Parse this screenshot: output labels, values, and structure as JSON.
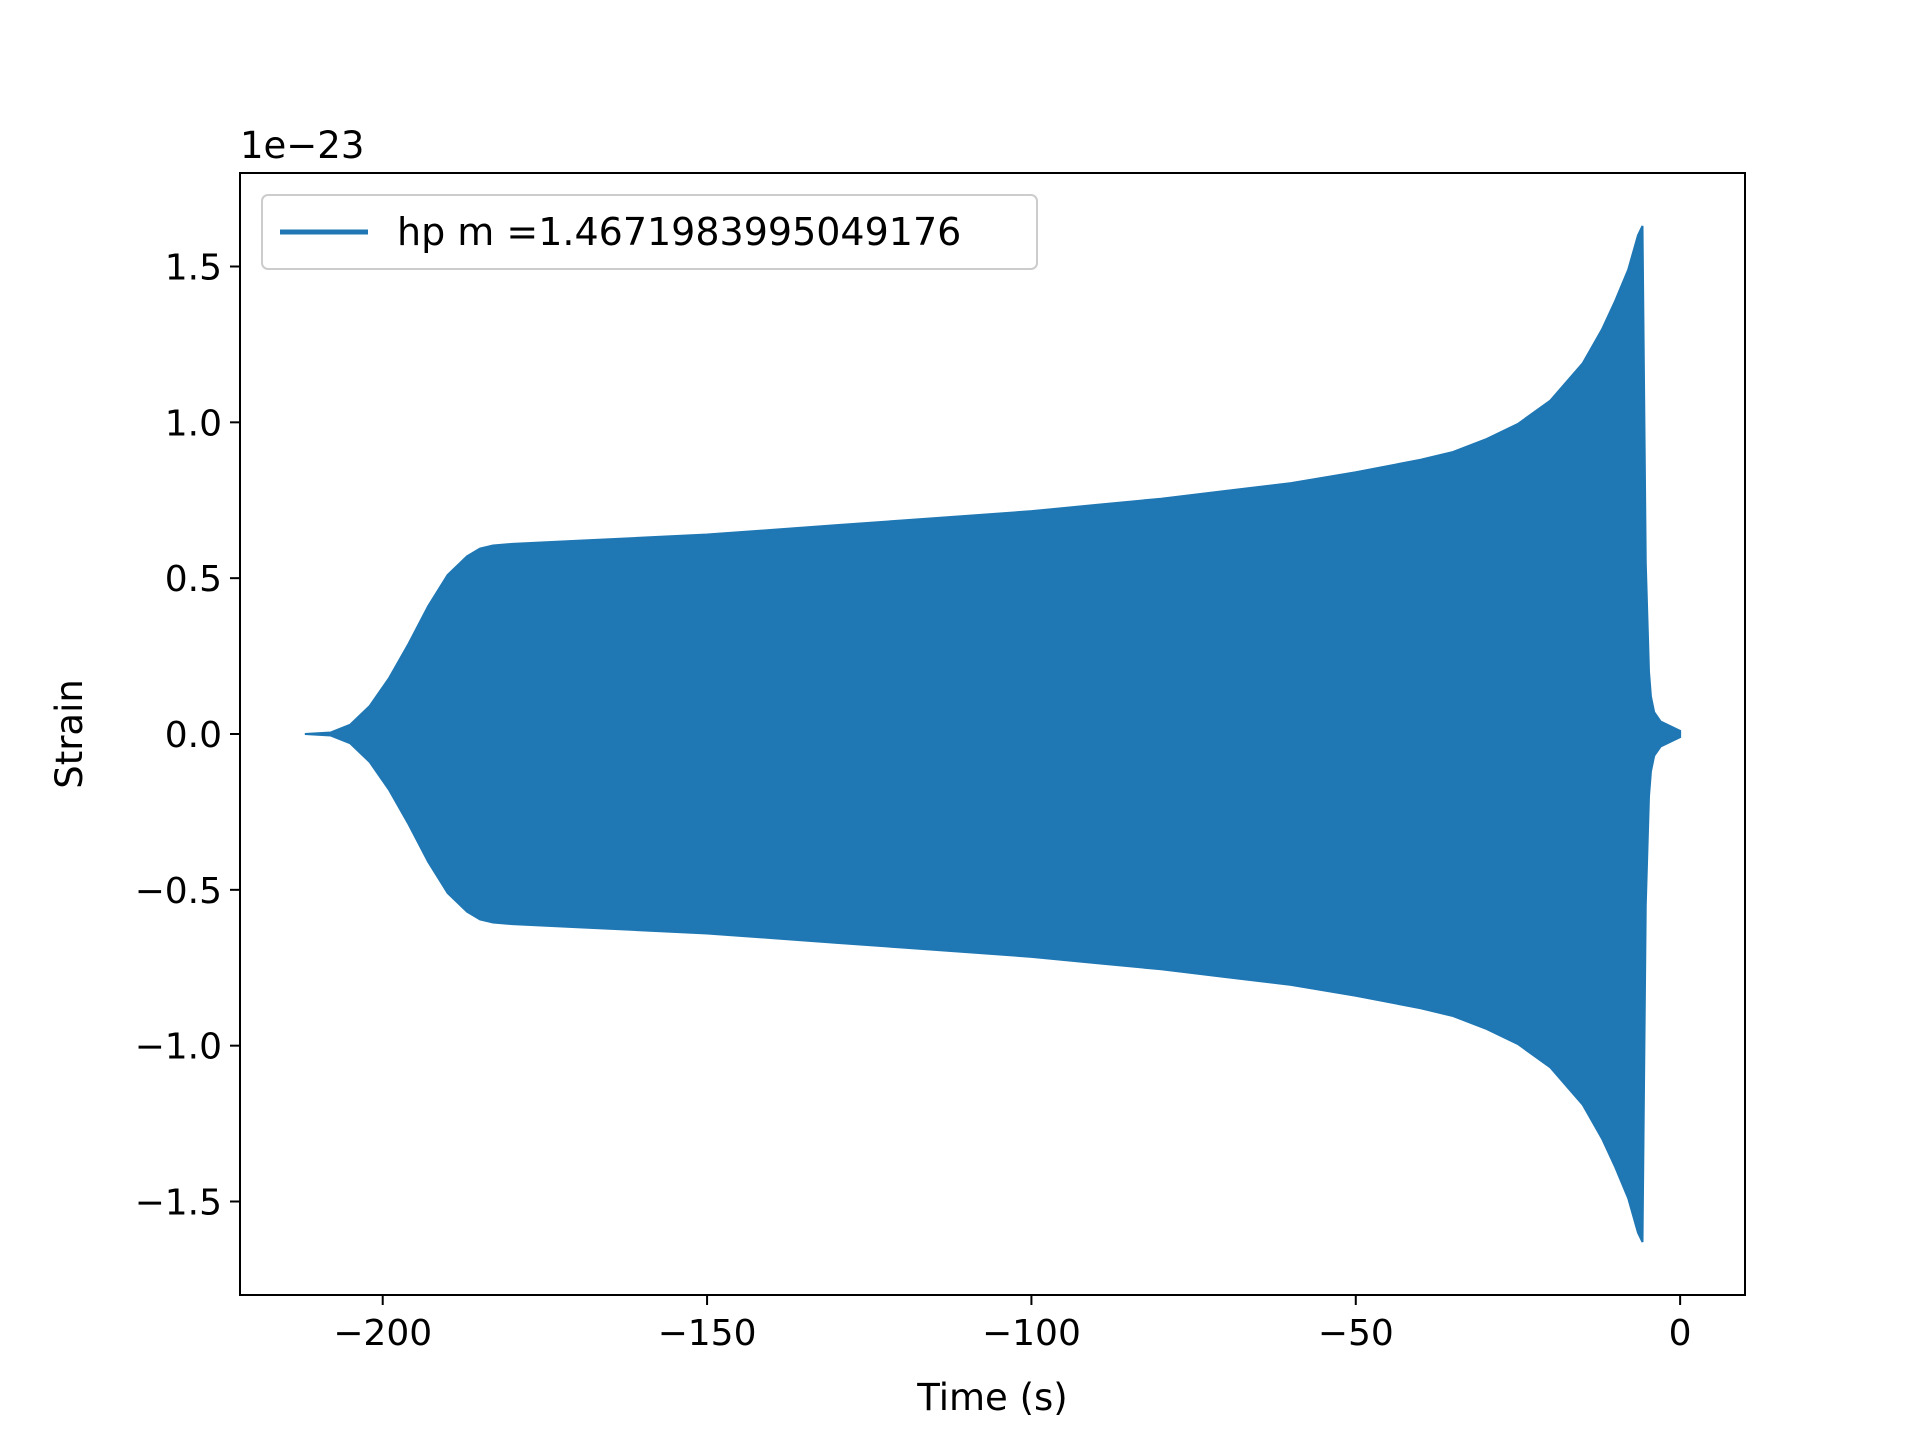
{
  "chart_data": {
    "type": "line",
    "title": "",
    "xlabel": "Time (s)",
    "ylabel": "Strain",
    "y_offset_label": "1e−23",
    "xlim": [
      -222,
      10
    ],
    "ylim": [
      -1.8,
      1.8
    ],
    "grid": false,
    "legend_position": "top-left",
    "x_ticks": [
      {
        "value": -200,
        "label": "−200"
      },
      {
        "value": -150,
        "label": "−150"
      },
      {
        "value": -100,
        "label": "−100"
      },
      {
        "value": -50,
        "label": "−50"
      },
      {
        "value": 0,
        "label": "0"
      }
    ],
    "y_ticks": [
      {
        "value": 1.5,
        "label": "1.5"
      },
      {
        "value": 1.0,
        "label": "1.0"
      },
      {
        "value": 0.5,
        "label": "0.5"
      },
      {
        "value": 0.0,
        "label": "0.0"
      },
      {
        "value": -0.5,
        "label": "−0.5"
      },
      {
        "value": -1.0,
        "label": "−1.0"
      },
      {
        "value": -1.5,
        "label": "−1.5"
      }
    ],
    "series": [
      {
        "name": "hp m =1.4671983995049176",
        "color": "#1f77b4",
        "envelope": {
          "t": [
            -212,
            -208,
            -205,
            -202,
            -199,
            -196,
            -193,
            -190,
            -187,
            -185,
            -183,
            -180,
            -170,
            -160,
            -150,
            -140,
            -130,
            -120,
            -110,
            -100,
            -90,
            -80,
            -70,
            -60,
            -50,
            -40,
            -35,
            -30,
            -25,
            -20,
            -15,
            -12,
            -10,
            -8,
            -6.5,
            -5.8,
            -5.3,
            -5.0,
            -4.8,
            -4.5,
            -4.0,
            -3.0,
            -2.0,
            -1.0,
            0.0
          ],
          "upper": [
            0.0,
            0.005,
            0.03,
            0.09,
            0.18,
            0.29,
            0.41,
            0.51,
            0.57,
            0.595,
            0.605,
            0.61,
            0.62,
            0.63,
            0.64,
            0.655,
            0.67,
            0.685,
            0.7,
            0.715,
            0.735,
            0.755,
            0.78,
            0.805,
            0.84,
            0.88,
            0.905,
            0.945,
            0.995,
            1.07,
            1.19,
            1.3,
            1.39,
            1.49,
            1.6,
            1.63,
            0.55,
            0.34,
            0.2,
            0.12,
            0.07,
            0.04,
            0.03,
            0.02,
            0.01
          ],
          "lower": [
            0.0,
            -0.005,
            -0.03,
            -0.09,
            -0.18,
            -0.29,
            -0.41,
            -0.51,
            -0.57,
            -0.595,
            -0.605,
            -0.61,
            -0.62,
            -0.63,
            -0.64,
            -0.655,
            -0.67,
            -0.685,
            -0.7,
            -0.715,
            -0.735,
            -0.755,
            -0.78,
            -0.805,
            -0.84,
            -0.88,
            -0.905,
            -0.945,
            -0.995,
            -1.07,
            -1.19,
            -1.3,
            -1.39,
            -1.49,
            -1.6,
            -1.63,
            -0.55,
            -0.34,
            -0.2,
            -0.12,
            -0.07,
            -0.04,
            -0.03,
            -0.02,
            -0.01
          ]
        }
      }
    ]
  }
}
